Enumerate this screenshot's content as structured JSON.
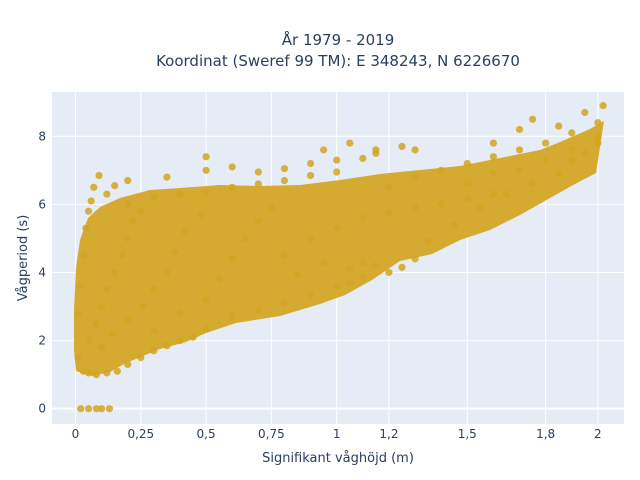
{
  "chart_data": {
    "type": "scatter",
    "title": "År 1979 - 2019",
    "subtitle": "Koordinat (Sweref 99 TM): E 348243, N 6226670",
    "xlabel": "Signifikant våghöjd (m)",
    "ylabel": "Vågperiod (s)",
    "xlim": [
      -0.09,
      2.1
    ],
    "ylim": [
      -0.45,
      9.3
    ],
    "x_ticks": [
      0,
      0.25,
      0.5,
      0.75,
      1,
      1.2,
      1.5,
      1.8,
      2
    ],
    "x_tick_labels": [
      "0",
      "0,25",
      "0,5",
      "0,75",
      "1",
      "1,2",
      "1,5",
      "1,8",
      "2"
    ],
    "y_ticks": [
      0,
      2,
      4,
      6,
      8
    ],
    "y_tick_labels": [
      "0",
      "2",
      "4",
      "6",
      "8"
    ],
    "grid": true,
    "marker_color": "#d4a420",
    "series": [
      {
        "points": [
          [
            0.02,
            0
          ],
          [
            0.05,
            0
          ],
          [
            0.08,
            0
          ],
          [
            0.1,
            0
          ],
          [
            0.13,
            0
          ],
          [
            0.01,
            1.5
          ],
          [
            0.01,
            2.8
          ],
          [
            0.02,
            3.6
          ],
          [
            0.03,
            4.5
          ],
          [
            0.04,
            5.3
          ],
          [
            0.05,
            5.8
          ],
          [
            0.06,
            6.1
          ],
          [
            0.07,
            6.5
          ],
          [
            0.09,
            6.85
          ],
          [
            0.03,
            1.1
          ],
          [
            0.05,
            1.05
          ],
          [
            0.08,
            1.0
          ],
          [
            0.12,
            1.05
          ],
          [
            0.16,
            1.1
          ],
          [
            0.2,
            1.3
          ],
          [
            0.25,
            1.5
          ],
          [
            0.3,
            1.7
          ],
          [
            0.35,
            1.85
          ],
          [
            0.4,
            2.0
          ],
          [
            0.45,
            2.1
          ],
          [
            0.5,
            2.35
          ],
          [
            0.6,
            2.7
          ],
          [
            0.7,
            2.9
          ],
          [
            0.8,
            3.1
          ],
          [
            0.9,
            3.35
          ],
          [
            1.0,
            3.6
          ],
          [
            1.05,
            3.7
          ],
          [
            1.1,
            3.85
          ],
          [
            1.2,
            4.0
          ],
          [
            0.05,
            2.0
          ],
          [
            0.08,
            2.5
          ],
          [
            0.1,
            3.0
          ],
          [
            0.12,
            3.5
          ],
          [
            0.15,
            4.0
          ],
          [
            0.18,
            4.5
          ],
          [
            0.2,
            5.0
          ],
          [
            0.22,
            5.5
          ],
          [
            0.25,
            5.8
          ],
          [
            0.1,
            1.8
          ],
          [
            0.14,
            2.2
          ],
          [
            0.2,
            2.6
          ],
          [
            0.26,
            3.0
          ],
          [
            0.3,
            3.5
          ],
          [
            0.35,
            4.0
          ],
          [
            0.38,
            4.6
          ],
          [
            0.42,
            5.2
          ],
          [
            0.48,
            5.7
          ],
          [
            0.3,
            2.3
          ],
          [
            0.4,
            2.8
          ],
          [
            0.5,
            3.2
          ],
          [
            0.55,
            3.8
          ],
          [
            0.6,
            4.4
          ],
          [
            0.65,
            5.0
          ],
          [
            0.7,
            5.5
          ],
          [
            0.75,
            5.9
          ],
          [
            0.2,
            6.0
          ],
          [
            0.3,
            6.2
          ],
          [
            0.4,
            6.3
          ],
          [
            0.5,
            6.35
          ],
          [
            0.6,
            6.5
          ],
          [
            0.7,
            6.6
          ],
          [
            0.8,
            6.7
          ],
          [
            0.9,
            6.85
          ],
          [
            1.0,
            6.95
          ],
          [
            0.35,
            6.8
          ],
          [
            0.5,
            7.0
          ],
          [
            0.6,
            7.1
          ],
          [
            0.7,
            6.95
          ],
          [
            0.8,
            7.05
          ],
          [
            0.9,
            7.2
          ],
          [
            1.0,
            7.3
          ],
          [
            1.1,
            7.35
          ],
          [
            1.15,
            7.5
          ],
          [
            0.2,
            6.7
          ],
          [
            0.15,
            6.55
          ],
          [
            0.12,
            6.3
          ],
          [
            0.5,
            7.4
          ],
          [
            0.8,
            4.5
          ],
          [
            0.9,
            5.0
          ],
          [
            1.0,
            5.3
          ],
          [
            1.1,
            5.6
          ],
          [
            1.2,
            5.75
          ],
          [
            1.3,
            5.9
          ],
          [
            1.4,
            6.0
          ],
          [
            1.5,
            6.15
          ],
          [
            1.6,
            6.3
          ],
          [
            1.2,
            6.5
          ],
          [
            1.3,
            6.8
          ],
          [
            1.4,
            7.0
          ],
          [
            1.5,
            7.2
          ],
          [
            1.6,
            7.4
          ],
          [
            1.7,
            7.6
          ],
          [
            1.8,
            7.8
          ],
          [
            1.9,
            8.1
          ],
          [
            2.0,
            8.4
          ],
          [
            1.5,
            6.6
          ],
          [
            1.6,
            6.9
          ],
          [
            1.7,
            7.0
          ],
          [
            1.8,
            7.3
          ],
          [
            1.9,
            7.6
          ],
          [
            2.0,
            8.0
          ],
          [
            2.02,
            8.9
          ],
          [
            1.95,
            8.7
          ],
          [
            1.85,
            8.3
          ],
          [
            1.6,
            7.8
          ],
          [
            1.7,
            8.2
          ],
          [
            1.75,
            8.5
          ],
          [
            1.3,
            7.6
          ],
          [
            1.25,
            7.7
          ],
          [
            1.05,
            7.8
          ],
          [
            1.15,
            7.6
          ],
          [
            0.95,
            7.6
          ],
          [
            1.05,
            4.1
          ],
          [
            1.1,
            4.3
          ],
          [
            1.15,
            4.2
          ],
          [
            0.95,
            4.3
          ],
          [
            0.85,
            3.95
          ],
          [
            1.25,
            4.15
          ],
          [
            1.3,
            4.4
          ],
          [
            1.35,
            4.9
          ],
          [
            1.45,
            5.4
          ],
          [
            1.55,
            5.9
          ],
          [
            1.65,
            6.3
          ],
          [
            1.75,
            6.6
          ],
          [
            1.85,
            6.9
          ],
          [
            1.9,
            7.3
          ],
          [
            1.95,
            7.5
          ],
          [
            2.0,
            7.8
          ]
        ]
      }
    ]
  }
}
